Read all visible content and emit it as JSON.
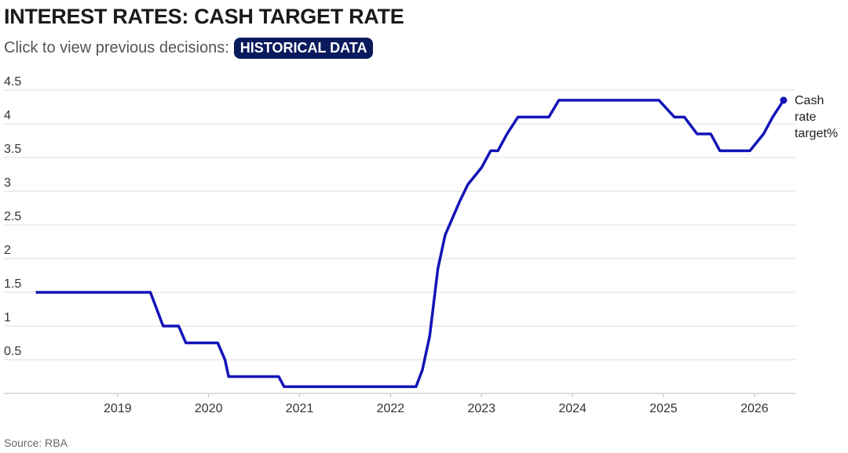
{
  "header": {
    "title": "INTEREST RATES: CASH TARGET RATE",
    "subtitle": "Click to view previous decisions:",
    "button": "HISTORICAL DATA"
  },
  "chart_data": {
    "type": "line",
    "x": [
      2018.1,
      2019.36,
      2019.5,
      2019.67,
      2019.75,
      2020.1,
      2020.18,
      2020.22,
      2020.77,
      2020.83,
      2022.28,
      2022.35,
      2022.43,
      2022.52,
      2022.6,
      2022.68,
      2022.76,
      2022.85,
      2023.0,
      2023.1,
      2023.18,
      2023.28,
      2023.4,
      2023.74,
      2023.85,
      2024.95,
      2025.12,
      2025.23,
      2025.37,
      2025.52,
      2025.62,
      2025.95,
      2026.1,
      2026.2,
      2026.32
    ],
    "series": [
      {
        "name": "Cash rate target%",
        "color": "#1414b8",
        "values": [
          1.5,
          1.5,
          1.0,
          1.0,
          0.75,
          0.75,
          0.5,
          0.25,
          0.25,
          0.1,
          0.1,
          0.35,
          0.85,
          1.85,
          2.35,
          2.6,
          2.85,
          3.1,
          3.35,
          3.6,
          3.6,
          3.85,
          4.1,
          4.1,
          4.35,
          4.35,
          4.1,
          4.1,
          3.85,
          3.85,
          3.6,
          3.6,
          3.85,
          4.1,
          4.35
        ]
      }
    ],
    "xlim": [
      2017.75,
      2026.45
    ],
    "xticks": [
      2019,
      2020,
      2021,
      2022,
      2023,
      2024,
      2025,
      2026
    ],
    "ylim": [
      0,
      4.5
    ],
    "yticks": [
      0.5,
      1,
      1.5,
      2,
      2.5,
      3,
      3.5,
      4,
      4.5
    ],
    "grid": true,
    "source": "Source: RBA"
  }
}
